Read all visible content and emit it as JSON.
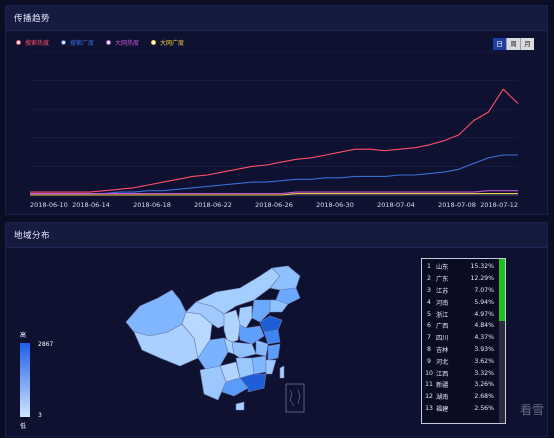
{
  "trend_panel": {
    "title": "传播趋势"
  },
  "legend": [
    {
      "label": "搜索热度",
      "color": "#ff4d6d"
    },
    {
      "label": "搜索广度",
      "color": "#3a6fd8"
    },
    {
      "label": "大网热度",
      "color": "#c256d6"
    },
    {
      "label": "大网广度",
      "color": "#f2c940"
    }
  ],
  "toggle": {
    "day": "日",
    "week": "周",
    "month": "月",
    "selected": "日"
  },
  "chart_data": {
    "type": "line",
    "x_tick_labels": [
      "2018-06-10",
      "2018-06-14",
      "2018-06-18",
      "2018-06-22",
      "2018-06-26",
      "2018-06-30",
      "2018-07-04",
      "2018-07-08",
      "2018-07-12"
    ],
    "x": [
      0,
      1,
      2,
      3,
      4,
      5,
      6,
      7,
      8,
      9,
      10,
      11,
      12,
      13,
      14,
      15,
      16,
      17,
      18,
      19,
      20,
      21,
      22,
      23,
      24,
      25,
      26,
      27,
      28,
      29,
      30,
      31,
      32,
      33
    ],
    "ylim": [
      0,
      100
    ],
    "series": [
      {
        "name": "搜索热度",
        "color": "#ff4d6d",
        "values": [
          2,
          2,
          2,
          2,
          2,
          3,
          4,
          5,
          7,
          9,
          11,
          13,
          14,
          16,
          18,
          20,
          21,
          23,
          25,
          26,
          28,
          30,
          32,
          32,
          31,
          32,
          33,
          35,
          38,
          42,
          52,
          58,
          74,
          64
        ]
      },
      {
        "name": "搜索广度",
        "color": "#3a6fd8",
        "values": [
          1,
          1,
          1,
          1,
          1,
          1,
          2,
          2,
          3,
          3,
          4,
          5,
          6,
          7,
          8,
          9,
          9,
          10,
          11,
          11,
          12,
          12,
          13,
          13,
          13,
          14,
          14,
          15,
          16,
          18,
          22,
          26,
          28,
          28
        ]
      },
      {
        "name": "大网热度",
        "color": "#c256d6",
        "values": [
          1,
          1,
          1,
          1,
          1,
          1,
          1,
          1,
          1,
          1,
          1,
          1,
          1,
          1,
          1,
          1,
          1,
          1,
          2,
          2,
          2,
          2,
          2,
          2,
          2,
          2,
          2,
          2,
          2,
          2,
          2,
          3,
          3,
          3
        ]
      },
      {
        "name": "大网广度",
        "color": "#f2c940",
        "values": [
          0,
          0,
          0,
          0,
          0,
          0,
          0,
          0,
          0,
          0,
          0,
          0,
          0,
          0,
          0,
          0,
          0,
          0,
          1,
          1,
          1,
          1,
          1,
          1,
          1,
          1,
          1,
          1,
          1,
          1,
          1,
          1,
          1,
          1
        ]
      }
    ],
    "grid": true
  },
  "region_panel": {
    "title": "地域分布"
  },
  "visual_map": {
    "high_label": "高",
    "low_label": "低",
    "max": "2867",
    "min": "3"
  },
  "ranking": [
    {
      "rank": "1",
      "province": "山东",
      "percent": "15.32%"
    },
    {
      "rank": "2",
      "province": "广东",
      "percent": "12.29%"
    },
    {
      "rank": "3",
      "province": "江苏",
      "percent": "7.07%"
    },
    {
      "rank": "4",
      "province": "河南",
      "percent": "5.94%"
    },
    {
      "rank": "5",
      "province": "浙江",
      "percent": "4.97%"
    },
    {
      "rank": "6",
      "province": "广西",
      "percent": "4.84%"
    },
    {
      "rank": "7",
      "province": "四川",
      "percent": "4.37%"
    },
    {
      "rank": "8",
      "province": "吉林",
      "percent": "3.93%"
    },
    {
      "rank": "9",
      "province": "河北",
      "percent": "3.62%"
    },
    {
      "rank": "10",
      "province": "江西",
      "percent": "3.32%"
    },
    {
      "rank": "11",
      "province": "新疆",
      "percent": "3.26%"
    },
    {
      "rank": "12",
      "province": "湖南",
      "percent": "2.68%"
    },
    {
      "rank": "13",
      "province": "福建",
      "percent": "2.56%"
    }
  ],
  "watermark": "看雪"
}
